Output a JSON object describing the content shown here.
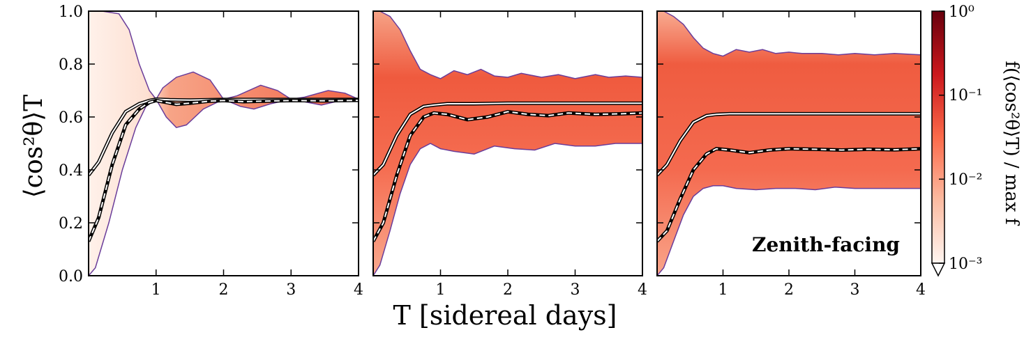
{
  "figure": {
    "xlabel": "T [sidereal days]",
    "ylabel": "⟨cos²θ⟩T",
    "annotation": "Zenith-facing",
    "colorbar": {
      "label": "f(⟨cos²θ⟩T) / max f",
      "scale": "log",
      "range": [
        0.001,
        1
      ],
      "ticks": [
        "10⁰",
        "10⁻¹",
        "10⁻²",
        "10⁻³"
      ],
      "colors": [
        "#fff5f0",
        "#fcbba1",
        "#fb6a4a",
        "#cb181d",
        "#67000d"
      ]
    }
  },
  "chart_data": [
    {
      "type": "area",
      "panel": "left",
      "xlim": [
        0,
        4
      ],
      "ylim": [
        0,
        1
      ],
      "xticks": [
        "1",
        "2",
        "3",
        "4"
      ],
      "yticks": [
        "0.0",
        "0.2",
        "0.4",
        "0.6",
        "0.8",
        "1.0"
      ],
      "upper_envelope": {
        "x": [
          0,
          0.2,
          0.45,
          0.6,
          0.75,
          0.9,
          1.0,
          1.1,
          1.3,
          1.55,
          1.8,
          2.0,
          2.2,
          2.55,
          2.8,
          3.0,
          3.2,
          3.55,
          3.8,
          4.0
        ],
        "y": [
          1.0,
          1.0,
          0.99,
          0.93,
          0.8,
          0.7,
          0.667,
          0.71,
          0.75,
          0.77,
          0.74,
          0.667,
          0.68,
          0.72,
          0.7,
          0.667,
          0.675,
          0.7,
          0.69,
          0.667
        ]
      },
      "lower_envelope": {
        "x": [
          0,
          0.1,
          0.3,
          0.5,
          0.7,
          0.85,
          1.0,
          1.15,
          1.3,
          1.45,
          1.7,
          2.0,
          2.25,
          2.45,
          2.7,
          3.0,
          3.25,
          3.45,
          3.7,
          4.0
        ],
        "y": [
          0.0,
          0.03,
          0.2,
          0.4,
          0.56,
          0.64,
          0.667,
          0.6,
          0.56,
          0.57,
          0.63,
          0.667,
          0.64,
          0.63,
          0.65,
          0.667,
          0.655,
          0.645,
          0.66,
          0.667
        ]
      },
      "mean_line": {
        "x": [
          0,
          0.15,
          0.35,
          0.55,
          0.75,
          0.9,
          1.0,
          1.2,
          1.5,
          2.0,
          3.0,
          4.0
        ],
        "y": [
          0.38,
          0.43,
          0.54,
          0.62,
          0.65,
          0.662,
          0.667,
          0.665,
          0.664,
          0.666,
          0.666,
          0.666
        ]
      },
      "dashed_line": {
        "x": [
          0,
          0.15,
          0.35,
          0.55,
          0.75,
          0.9,
          1.0,
          1.15,
          1.3,
          1.5,
          1.8,
          2.0,
          2.3,
          2.6,
          3.0,
          3.5,
          4.0
        ],
        "y": [
          0.13,
          0.22,
          0.42,
          0.57,
          0.63,
          0.655,
          0.662,
          0.655,
          0.648,
          0.652,
          0.66,
          0.662,
          0.658,
          0.66,
          0.662,
          0.661,
          0.663
        ]
      }
    },
    {
      "type": "area",
      "panel": "middle",
      "xlim": [
        0,
        4
      ],
      "ylim": [
        0,
        1
      ],
      "xticks": [
        "1",
        "2",
        "3",
        "4"
      ],
      "upper_envelope": {
        "x": [
          0,
          0.1,
          0.25,
          0.4,
          0.55,
          0.7,
          0.85,
          1.0,
          1.2,
          1.4,
          1.6,
          1.8,
          2.0,
          2.2,
          2.5,
          2.75,
          3.0,
          3.3,
          3.5,
          3.75,
          4.0
        ],
        "y": [
          1.0,
          1.0,
          0.98,
          0.93,
          0.85,
          0.78,
          0.76,
          0.745,
          0.775,
          0.76,
          0.78,
          0.755,
          0.75,
          0.765,
          0.75,
          0.76,
          0.745,
          0.76,
          0.75,
          0.755,
          0.75
        ]
      },
      "lower_envelope": {
        "x": [
          0,
          0.1,
          0.25,
          0.4,
          0.55,
          0.7,
          0.85,
          1.0,
          1.2,
          1.5,
          1.8,
          2.1,
          2.4,
          2.7,
          3.0,
          3.3,
          3.6,
          4.0
        ],
        "y": [
          0.0,
          0.04,
          0.17,
          0.31,
          0.42,
          0.48,
          0.5,
          0.48,
          0.47,
          0.46,
          0.49,
          0.48,
          0.475,
          0.5,
          0.49,
          0.49,
          0.5,
          0.5
        ]
      },
      "mean_line": {
        "x": [
          0,
          0.15,
          0.35,
          0.55,
          0.75,
          0.9,
          1.1,
          1.5,
          2.0,
          3.0,
          4.0
        ],
        "y": [
          0.38,
          0.42,
          0.53,
          0.61,
          0.64,
          0.645,
          0.65,
          0.65,
          0.652,
          0.652,
          0.652
        ]
      },
      "dashed_line": {
        "x": [
          0,
          0.15,
          0.35,
          0.55,
          0.75,
          0.9,
          1.1,
          1.4,
          1.7,
          2.0,
          2.3,
          2.6,
          2.9,
          3.3,
          3.7,
          4.0
        ],
        "y": [
          0.13,
          0.2,
          0.38,
          0.53,
          0.6,
          0.615,
          0.61,
          0.59,
          0.6,
          0.62,
          0.61,
          0.605,
          0.615,
          0.61,
          0.612,
          0.615
        ]
      }
    },
    {
      "type": "area",
      "panel": "right",
      "xlim": [
        0,
        4
      ],
      "ylim": [
        0,
        1
      ],
      "xticks": [
        "1",
        "2",
        "3",
        "4"
      ],
      "upper_envelope": {
        "x": [
          0,
          0.1,
          0.25,
          0.4,
          0.55,
          0.7,
          0.85,
          1.0,
          1.2,
          1.4,
          1.6,
          1.8,
          2.0,
          2.2,
          2.5,
          2.75,
          3.0,
          3.3,
          3.6,
          4.0
        ],
        "y": [
          1.0,
          1.0,
          0.98,
          0.95,
          0.9,
          0.86,
          0.84,
          0.83,
          0.855,
          0.845,
          0.855,
          0.84,
          0.845,
          0.84,
          0.84,
          0.835,
          0.84,
          0.835,
          0.84,
          0.835
        ]
      },
      "lower_envelope": {
        "x": [
          0,
          0.1,
          0.25,
          0.4,
          0.55,
          0.7,
          0.85,
          1.0,
          1.2,
          1.5,
          1.8,
          2.1,
          2.4,
          2.7,
          3.0,
          3.3,
          3.6,
          4.0
        ],
        "y": [
          0.0,
          0.03,
          0.13,
          0.23,
          0.3,
          0.33,
          0.34,
          0.34,
          0.33,
          0.325,
          0.33,
          0.33,
          0.325,
          0.335,
          0.33,
          0.33,
          0.33,
          0.33
        ]
      },
      "mean_line": {
        "x": [
          0,
          0.15,
          0.35,
          0.55,
          0.75,
          0.9,
          1.1,
          1.5,
          2.0,
          3.0,
          4.0
        ],
        "y": [
          0.38,
          0.42,
          0.51,
          0.58,
          0.605,
          0.61,
          0.612,
          0.612,
          0.612,
          0.612,
          0.612
        ]
      },
      "dashed_line": {
        "x": [
          0,
          0.15,
          0.35,
          0.55,
          0.75,
          0.9,
          1.1,
          1.4,
          1.7,
          2.0,
          2.4,
          2.8,
          3.2,
          3.6,
          4.0
        ],
        "y": [
          0.13,
          0.17,
          0.29,
          0.4,
          0.46,
          0.48,
          0.475,
          0.465,
          0.475,
          0.48,
          0.478,
          0.475,
          0.478,
          0.476,
          0.48
        ]
      }
    }
  ]
}
